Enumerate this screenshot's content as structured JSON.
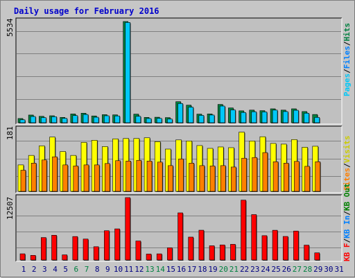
{
  "title": "Daily usage for February 2016",
  "colors": {
    "title": "#0000cc",
    "hits": "#008040",
    "files": "#00c8f8",
    "pages": "#00a0a0",
    "visits": "#ffff00",
    "sites": "#ff8000",
    "kbytes": "#ff0000",
    "kb_in": "#0080ff",
    "kb_out": "#008000",
    "weekend": "#008040",
    "weekday": "#000080"
  },
  "legends": {
    "top": [
      "Pages",
      "/",
      "Files",
      "/",
      "Hits"
    ],
    "middle": [
      "Visits",
      "/",
      "Sites"
    ],
    "bottom": [
      "KB F",
      "/",
      "KB In",
      "/",
      "KB Out"
    ]
  },
  "y_labels": {
    "top": "5534",
    "middle": "181",
    "bottom": "12507"
  },
  "chart_data": [
    {
      "type": "bar",
      "name": "hits-files-pages",
      "categories": [
        "1",
        "2",
        "3",
        "4",
        "5",
        "6",
        "7",
        "8",
        "9",
        "10",
        "11",
        "12",
        "13",
        "14",
        "15",
        "16",
        "17",
        "18",
        "19",
        "20",
        "21",
        "22",
        "23",
        "24",
        "25",
        "26",
        "27",
        "28",
        "29",
        "30",
        "31"
      ],
      "ylim": [
        0,
        5534
      ],
      "series": [
        {
          "name": "Hits",
          "values": [
            230,
            420,
            350,
            380,
            290,
            480,
            520,
            370,
            440,
            430,
            5534,
            470,
            290,
            300,
            280,
            1150,
            960,
            470,
            480,
            1000,
            810,
            650,
            690,
            660,
            760,
            690,
            760,
            610,
            450,
            0,
            0
          ]
        },
        {
          "name": "Files",
          "values": [
            160,
            340,
            280,
            330,
            240,
            390,
            450,
            300,
            380,
            370,
            5480,
            350,
            230,
            240,
            200,
            1050,
            850,
            400,
            420,
            910,
            700,
            560,
            600,
            590,
            690,
            610,
            680,
            520,
            290,
            0,
            0
          ]
        },
        {
          "name": "Pages",
          "values": [
            0,
            0,
            0,
            0,
            0,
            0,
            0,
            0,
            0,
            0,
            0,
            0,
            0,
            0,
            0,
            0,
            0,
            0,
            0,
            0,
            0,
            0,
            0,
            0,
            0,
            0,
            0,
            0,
            0,
            0,
            0
          ]
        }
      ]
    },
    {
      "type": "bar",
      "name": "visits-sites",
      "categories": [
        "1",
        "2",
        "3",
        "4",
        "5",
        "6",
        "7",
        "8",
        "9",
        "10",
        "11",
        "12",
        "13",
        "14",
        "15",
        "16",
        "17",
        "18",
        "19",
        "20",
        "21",
        "22",
        "23",
        "24",
        "25",
        "26",
        "27",
        "28",
        "29",
        "30",
        "31"
      ],
      "ylim": [
        0,
        181
      ],
      "series": [
        {
          "name": "Visits",
          "values": [
            75,
            102,
            129,
            154,
            113,
            102,
            139,
            145,
            127,
            149,
            150,
            150,
            152,
            141,
            120,
            146,
            143,
            130,
            122,
            126,
            124,
            168,
            143,
            155,
            136,
            134,
            147,
            125,
            128,
            0,
            0
          ]
        },
        {
          "name": "Sites",
          "values": [
            60,
            80,
            89,
            98,
            75,
            72,
            75,
            75,
            79,
            87,
            86,
            88,
            86,
            83,
            73,
            92,
            80,
            73,
            72,
            73,
            69,
            94,
            96,
            110,
            84,
            80,
            85,
            71,
            84,
            0,
            0
          ]
        }
      ]
    },
    {
      "type": "bar",
      "name": "kbytes",
      "categories": [
        "1",
        "2",
        "3",
        "4",
        "5",
        "6",
        "7",
        "8",
        "9",
        "10",
        "11",
        "12",
        "13",
        "14",
        "15",
        "16",
        "17",
        "18",
        "19",
        "20",
        "21",
        "22",
        "23",
        "24",
        "25",
        "26",
        "27",
        "28",
        "29",
        "30",
        "31"
      ],
      "ylim": [
        0,
        12507
      ],
      "series": [
        {
          "name": "KB F",
          "values": [
            1240,
            930,
            4500,
            4960,
            1030,
            4700,
            4200,
            2660,
            5870,
            6240,
            12507,
            3810,
            1190,
            1230,
            2440,
            9450,
            4590,
            5970,
            2850,
            3020,
            3140,
            12000,
            9100,
            4880,
            5960,
            4720,
            5800,
            2980,
            1430,
            0,
            0
          ]
        },
        {
          "name": "KB In",
          "values": [
            0,
            0,
            0,
            0,
            0,
            0,
            0,
            0,
            0,
            0,
            0,
            0,
            0,
            0,
            0,
            0,
            0,
            0,
            0,
            0,
            0,
            0,
            0,
            0,
            0,
            0,
            0,
            0,
            0,
            0,
            0
          ]
        },
        {
          "name": "KB Out",
          "values": [
            0,
            0,
            0,
            0,
            0,
            0,
            0,
            0,
            0,
            0,
            0,
            0,
            0,
            0,
            0,
            0,
            0,
            0,
            0,
            0,
            0,
            0,
            0,
            0,
            0,
            0,
            0,
            0,
            0,
            0,
            0
          ]
        }
      ]
    }
  ],
  "weekend_days": [
    "6",
    "7",
    "13",
    "14",
    "20",
    "21",
    "27",
    "28"
  ]
}
